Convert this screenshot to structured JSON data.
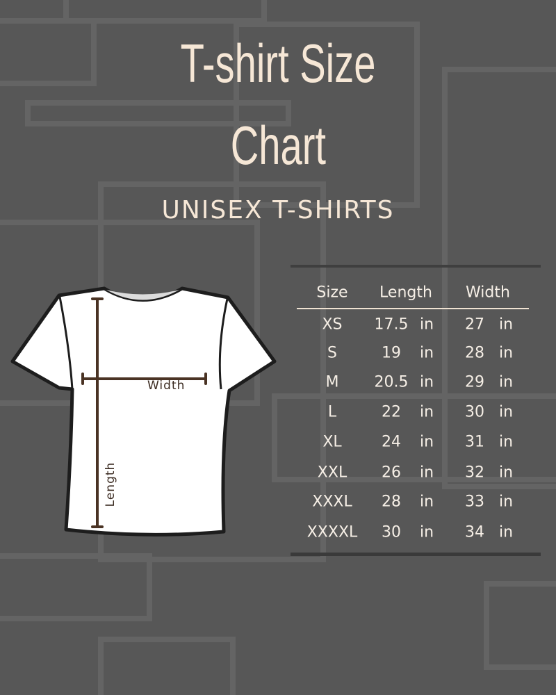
{
  "title_line1": "T-shirt Size",
  "title_line2": "Chart",
  "subtitle": "UNISEX T-SHIRTS",
  "colors": {
    "background": "#575757",
    "title": "#f6e7d6",
    "measure_line": "#4a3324"
  },
  "diagram": {
    "width_label": "Width",
    "length_label": "Length"
  },
  "table": {
    "headers": [
      "Size",
      "Length",
      "Width"
    ],
    "unit": "in",
    "rows": [
      {
        "size": "XS",
        "length": "17.5",
        "width": "27"
      },
      {
        "size": "S",
        "length": "19",
        "width": "28"
      },
      {
        "size": "M",
        "length": "20.5",
        "width": "29"
      },
      {
        "size": "L",
        "length": "22",
        "width": "30"
      },
      {
        "size": "XL",
        "length": "24",
        "width": "31"
      },
      {
        "size": "XXL",
        "length": "26",
        "width": "32"
      },
      {
        "size": "XXXL",
        "length": "28",
        "width": "33"
      },
      {
        "size": "XXXXL",
        "length": "30",
        "width": "34"
      }
    ]
  }
}
